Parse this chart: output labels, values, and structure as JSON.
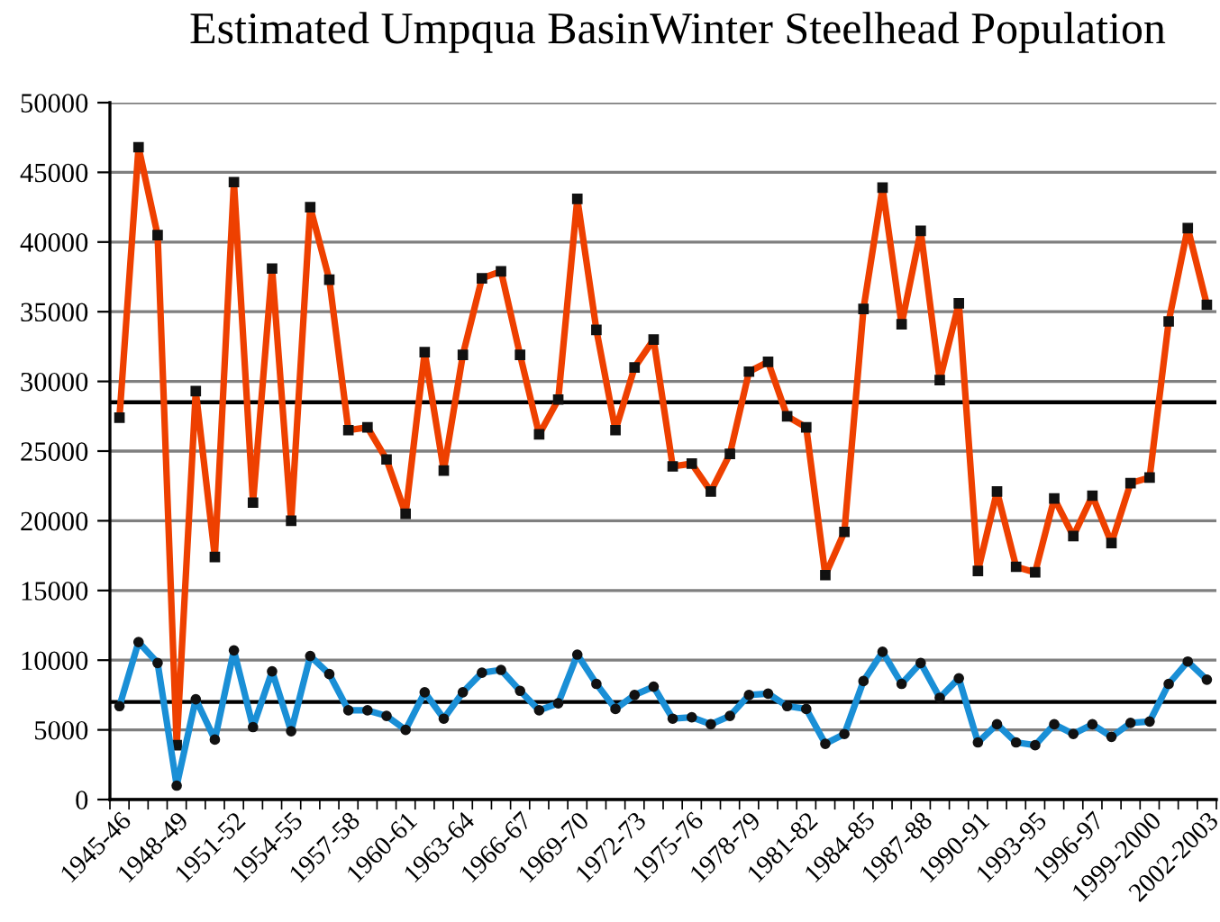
{
  "chart_data": {
    "type": "line",
    "title": "Estimated Umpqua BasinWinter Steelhead Population",
    "categories": [
      "1945-46",
      null,
      null,
      "1948-49",
      null,
      null,
      "1951-52",
      null,
      null,
      "1954-55",
      null,
      null,
      "1957-58",
      null,
      null,
      "1960-61",
      null,
      null,
      "1963-64",
      null,
      null,
      "1966-67",
      null,
      null,
      "1969-70",
      null,
      null,
      "1972-73",
      null,
      null,
      "1975-76",
      null,
      null,
      "1978-79",
      null,
      null,
      "1981-82",
      null,
      null,
      "1984-85",
      null,
      null,
      "1987-88",
      null,
      null,
      "1990-91",
      null,
      null,
      "1993-95",
      null,
      null,
      "1996-97",
      null,
      null,
      "1999-2000",
      null,
      null,
      "2002-2003"
    ],
    "series": [
      {
        "color": "#ee4000",
        "marker": "square",
        "values": [
          27400,
          46800,
          40500,
          3900,
          29300,
          17400,
          44300,
          21300,
          38100,
          20000,
          42500,
          37300,
          26500,
          26700,
          24400,
          20500,
          32100,
          23600,
          31900,
          37400,
          37900,
          31900,
          26200,
          28700,
          43100,
          33700,
          26500,
          31000,
          33000,
          23900,
          24100,
          22100,
          24800,
          30700,
          31400,
          27500,
          26700,
          16100,
          19200,
          35200,
          43900,
          34100,
          40800,
          30100,
          35600,
          16400,
          22100,
          16700,
          16300,
          21600,
          18900,
          21800,
          18400,
          22700,
          23100,
          34300,
          41000,
          35500
        ]
      },
      {
        "color": "#1a8fd6",
        "marker": "circle",
        "values": [
          6700,
          11300,
          9800,
          1000,
          7200,
          4300,
          10700,
          5200,
          9200,
          4900,
          10300,
          9000,
          6400,
          6400,
          6000,
          5000,
          7700,
          5800,
          7700,
          9100,
          9300,
          7800,
          6400,
          6900,
          10400,
          8300,
          6500,
          7500,
          8100,
          5800,
          5900,
          5400,
          6000,
          7500,
          7600,
          6700,
          6500,
          4000,
          4700,
          8500,
          10600,
          8300,
          9800,
          7300,
          8700,
          4100,
          5400,
          4100,
          3900,
          5400,
          4700,
          5400,
          4500,
          5500,
          5600,
          8300,
          9900,
          8600
        ]
      }
    ],
    "ylim": [
      0,
      50000
    ],
    "yticks": [
      0,
      5000,
      10000,
      15000,
      20000,
      25000,
      30000,
      35000,
      40000,
      45000,
      50000
    ],
    "grid": "y",
    "line_style": "solid",
    "ref_lines": [
      {
        "axis": "y",
        "value": 28500,
        "color": "#000000"
      },
      {
        "axis": "y",
        "value": 7000,
        "color": "#000000"
      }
    ]
  }
}
